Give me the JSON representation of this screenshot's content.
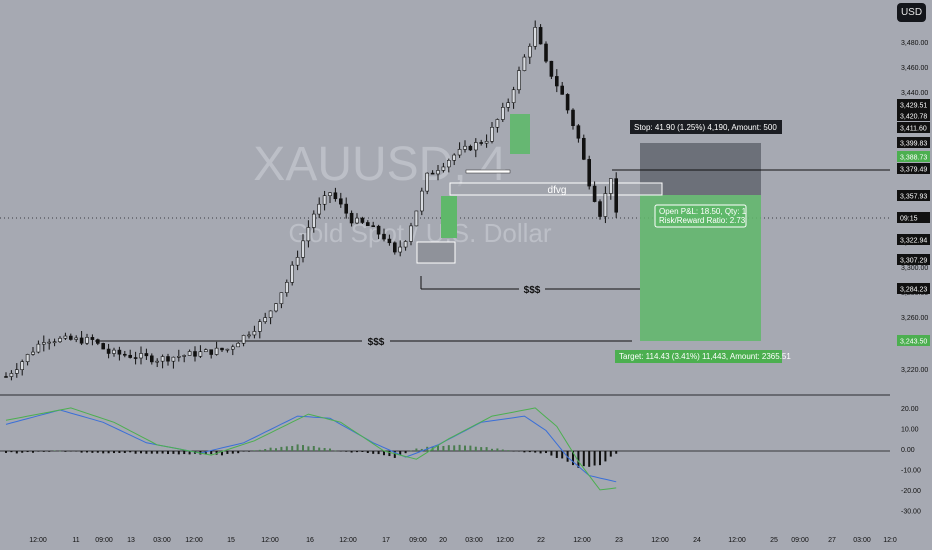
{
  "currency_button": "USD",
  "watermark": {
    "symbol": "XAUUSD, 4",
    "name": "Gold Spot / U.S. Dollar"
  },
  "price_axis": {
    "ticks": [
      "3,480.00",
      "3,460.00",
      "3,440.00",
      "3,420.00",
      "3,400.00",
      "3,380.00",
      "3,360.00",
      "3,340.00",
      "3,320.00",
      "3,300.00",
      "3,280.00",
      "3,260.00",
      "3,240.00",
      "3,220.00"
    ],
    "labels": [
      {
        "text": "3,429.51",
        "style": "dark"
      },
      {
        "text": "3,420.78",
        "style": "dark"
      },
      {
        "text": "3,411.60",
        "style": "dark"
      },
      {
        "text": "3,399.83",
        "style": "dark"
      },
      {
        "text": "3,388.73",
        "style": "green"
      },
      {
        "text": "3,379.49",
        "style": "dark"
      },
      {
        "text": "3,357.93",
        "style": "dark"
      },
      {
        "text": "09:15",
        "style": "dark"
      },
      {
        "text": "3,322.94",
        "style": "dark"
      },
      {
        "text": "3,307.29",
        "style": "dark"
      },
      {
        "text": "3,284.23",
        "style": "dark"
      },
      {
        "text": "3,243.50",
        "style": "green"
      }
    ]
  },
  "osc_axis": {
    "ticks": [
      "20.00",
      "10.00",
      "0.00",
      "-10.00",
      "-20.00",
      "-30.00"
    ]
  },
  "time_axis": {
    "ticks": [
      "12:00",
      "11",
      "09:00",
      "13",
      "03:00",
      "12:00",
      "15",
      "12:00",
      "16",
      "12:00",
      "17",
      "09:00",
      "20",
      "03:00",
      "12:00",
      "22",
      "12:00",
      "23",
      "12:00",
      "24",
      "12:00",
      "25",
      "09:00",
      "27",
      "03:00",
      "12:0"
    ]
  },
  "drawings": {
    "fvg_label": "dfvg",
    "liquidity_high": "$$$",
    "liquidity_low": "$$$",
    "stop_label": "Stop: 41.90 (1.25%) 4,190, Amount: 500",
    "open_pl_line1": "Open P&L: 18.50, Qty: 1",
    "open_pl_line2": "Risk/Reward Ratio: 2.73",
    "target_label": "Target: 114.43 (3.41%) 11,443, Amount: 2365.51"
  },
  "colors": {
    "background": "#a6a9b2",
    "candle": "#111111",
    "green_zone": "#5fb86a",
    "stop_zone": "#6c7079",
    "dark_label": "#111111",
    "green_label": "#4caf50",
    "macd_line": "#3a6fd8",
    "signal_line": "#4caf50"
  },
  "chart_data": {
    "type": "candlestick",
    "symbol": "XAUUSD",
    "timeframe": "4",
    "ylim": [
      3195,
      3500
    ],
    "last_price": 3343.27,
    "checkpoints": [
      [
        0,
        3214
      ],
      [
        2,
        3222
      ],
      [
        7,
        3244
      ],
      [
        16,
        3243
      ],
      [
        19,
        3233
      ],
      [
        28,
        3228
      ],
      [
        41,
        3236
      ],
      [
        48,
        3260
      ],
      [
        52,
        3290
      ],
      [
        57,
        3345
      ],
      [
        60,
        3362
      ],
      [
        64,
        3340
      ],
      [
        67,
        3335
      ],
      [
        70,
        3326
      ],
      [
        72,
        3312
      ],
      [
        74,
        3325
      ],
      [
        76,
        3348
      ],
      [
        78,
        3375
      ],
      [
        83,
        3392
      ],
      [
        89,
        3405
      ],
      [
        93,
        3435
      ],
      [
        96,
        3470
      ],
      [
        98,
        3493
      ],
      [
        100,
        3465
      ],
      [
        103,
        3440
      ],
      [
        106,
        3405
      ],
      [
        108,
        3370
      ],
      [
        110,
        3345
      ],
      [
        112,
        3375
      ],
      [
        113,
        3343
      ]
    ],
    "oscillator": {
      "ylim": [
        -30,
        25
      ],
      "histogram_checkpoints": [
        [
          0,
          -1
        ],
        [
          10,
          0
        ],
        [
          20,
          -1
        ],
        [
          28,
          -1
        ],
        [
          40,
          -2
        ],
        [
          48,
          1
        ],
        [
          54,
          3
        ],
        [
          58,
          2
        ],
        [
          62,
          0
        ],
        [
          68,
          -1
        ],
        [
          72,
          -3
        ],
        [
          76,
          1
        ],
        [
          82,
          3
        ],
        [
          88,
          2
        ],
        [
          94,
          0
        ],
        [
          100,
          -1
        ],
        [
          103,
          -4
        ],
        [
          106,
          -8
        ],
        [
          110,
          -7
        ],
        [
          113,
          -1
        ]
      ],
      "macd_checkpoints": [
        [
          0,
          13
        ],
        [
          10,
          20
        ],
        [
          18,
          14
        ],
        [
          26,
          4
        ],
        [
          36,
          -1
        ],
        [
          44,
          4
        ],
        [
          54,
          17
        ],
        [
          60,
          16
        ],
        [
          68,
          4
        ],
        [
          74,
          -3
        ],
        [
          80,
          3
        ],
        [
          88,
          14
        ],
        [
          96,
          17
        ],
        [
          100,
          10
        ],
        [
          104,
          -3
        ],
        [
          108,
          -12
        ],
        [
          113,
          -15
        ]
      ],
      "signal_checkpoints": [
        [
          0,
          15
        ],
        [
          12,
          21
        ],
        [
          20,
          14
        ],
        [
          28,
          3
        ],
        [
          38,
          -2
        ],
        [
          46,
          5
        ],
        [
          56,
          18
        ],
        [
          62,
          14
        ],
        [
          70,
          0
        ],
        [
          76,
          -4
        ],
        [
          82,
          6
        ],
        [
          90,
          17
        ],
        [
          98,
          21
        ],
        [
          102,
          12
        ],
        [
          106,
          -5
        ],
        [
          110,
          -19
        ],
        [
          113,
          -18
        ]
      ]
    }
  }
}
